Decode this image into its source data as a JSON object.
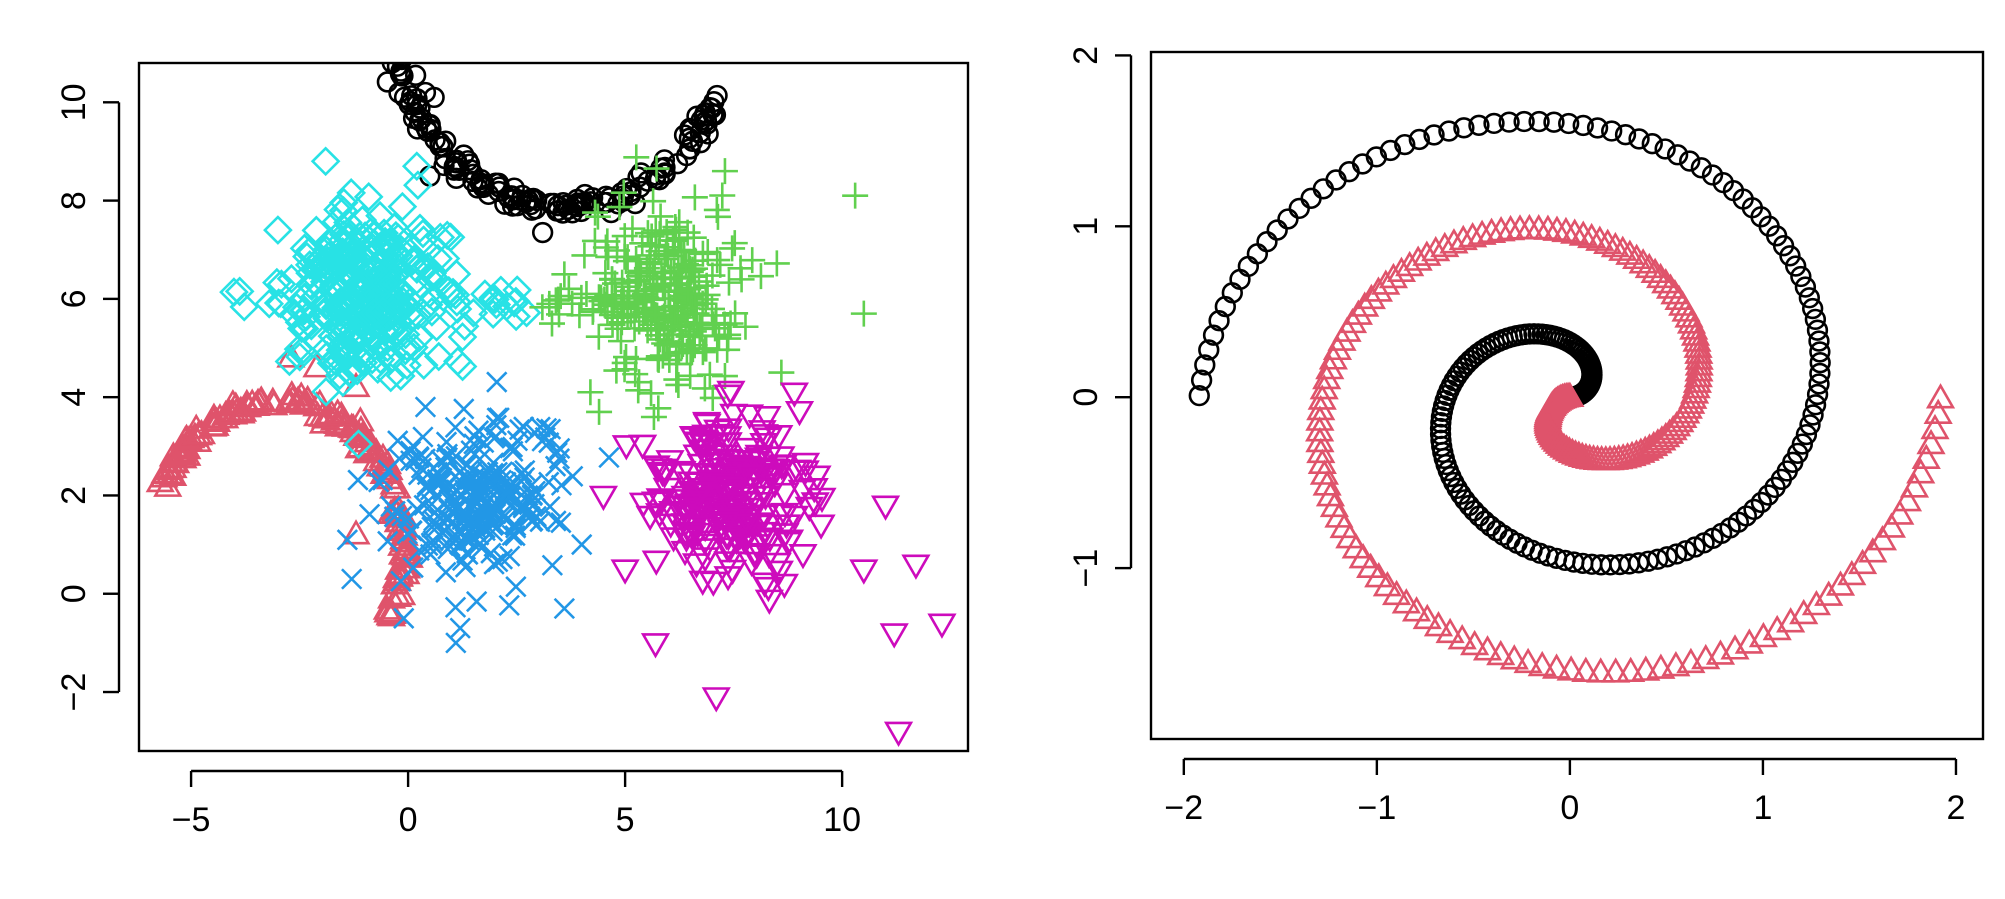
{
  "chart_data": [
    {
      "type": "scatter",
      "title": "",
      "xlabel": "",
      "ylabel": "",
      "xlim": [
        -6.2,
        12.9
      ],
      "ylim": [
        -3.2,
        10.8
      ],
      "xticks": [
        -5,
        0,
        5,
        10
      ],
      "yticks": [
        -2,
        0,
        2,
        4,
        6,
        8,
        10
      ],
      "xtick_labels": [
        "−5",
        "0",
        "5",
        "10"
      ],
      "ytick_labels": [
        "−2",
        "0",
        "2",
        "4",
        "6",
        "8",
        "10"
      ],
      "grid": false,
      "legend": "none",
      "series": [
        {
          "color": "#000000",
          "marker": "circle",
          "shape": "arc",
          "center": [
            3.6,
            11.9
          ],
          "radius": 4.0,
          "angle_range": [
            195,
            335
          ],
          "points": 150,
          "noise": 0.12,
          "extra_points": [
            [
              0.4,
              10.2
            ],
            [
              0.6,
              10.1
            ],
            [
              0.5,
              8.5
            ],
            [
              3.1,
              7.35
            ]
          ]
        },
        {
          "color": "#DF536B",
          "marker": "triangle",
          "shape": "arc",
          "center": [
            -3.0,
            1.0
          ],
          "radius": 2.9,
          "angle_range": [
            -30,
            158
          ],
          "points": 160,
          "noise": 0.08,
          "extra_points": [
            [
              -2.7,
              4.8
            ],
            [
              -2.1,
              4.6
            ],
            [
              -1.2,
              4.2
            ],
            [
              -1.1,
              3.5
            ],
            [
              -1.2,
              1.2
            ]
          ]
        },
        {
          "color": "#28E2E5",
          "marker": "diamond",
          "shape": "blob",
          "center": [
            -1.0,
            6.0
          ],
          "spread": [
            0.9,
            0.85
          ],
          "points": 300,
          "tail": {
            "from": [
              0.5,
              5.9
            ],
            "to": [
              2.7,
              5.9
            ],
            "points": 20
          },
          "extra_points": [
            [
              -3.2,
              5.9
            ],
            [
              -3.0,
              7.4
            ],
            [
              -1.9,
              8.8
            ],
            [
              0.2,
              8.7
            ],
            [
              -0.4,
              4.4
            ],
            [
              -1.5,
              4.3
            ]
          ]
        },
        {
          "color": "#61D04F",
          "marker": "plus",
          "shape": "blob",
          "center": [
            6.0,
            6.0
          ],
          "spread": [
            0.85,
            0.9
          ],
          "points": 250,
          "tail": {
            "from": [
              3.0,
              5.9
            ],
            "to": [
              5.0,
              5.9
            ],
            "points": 20
          },
          "extra_points": [
            [
              10.3,
              8.1
            ],
            [
              10.5,
              5.7
            ],
            [
              7.3,
              8.6
            ],
            [
              8.6,
              4.5
            ],
            [
              4.2,
              4.1
            ],
            [
              4.4,
              3.7
            ],
            [
              3.6,
              6.5
            ]
          ]
        },
        {
          "color": "#2297E6",
          "marker": "cross",
          "shape": "blob",
          "center": [
            1.5,
            2.0
          ],
          "spread": [
            1.0,
            0.8
          ],
          "points": 250,
          "extra_points": [
            [
              -1.3,
              0.3
            ],
            [
              -0.1,
              -0.5
            ],
            [
              1.1,
              -1.0
            ],
            [
              1.2,
              -0.7
            ],
            [
              3.6,
              -0.3
            ],
            [
              4.0,
              1.0
            ],
            [
              0.4,
              3.8
            ]
          ]
        },
        {
          "color": "#CD0BBC",
          "marker": "triangle-down",
          "shape": "blob",
          "center": [
            7.5,
            2.0
          ],
          "spread": [
            0.85,
            0.8
          ],
          "points": 250,
          "extra_points": [
            [
              10.5,
              0.5
            ],
            [
              11.2,
              -0.8
            ],
            [
              11.7,
              0.6
            ],
            [
              12.3,
              -0.6
            ],
            [
              11.3,
              -2.8
            ],
            [
              7.1,
              -2.1
            ],
            [
              5.0,
              0.5
            ],
            [
              4.5,
              2.0
            ],
            [
              5.7,
              -1.0
            ],
            [
              11.0,
              1.8
            ],
            [
              8.9,
              4.1
            ]
          ]
        }
      ]
    },
    {
      "type": "scatter",
      "title": "",
      "xlabel": "",
      "ylabel": "",
      "xlim": [
        -2.17,
        2.14
      ],
      "ylim": [
        -2.0,
        2.02
      ],
      "xticks": [
        -2,
        -1,
        0,
        1,
        2
      ],
      "yticks": [
        -1,
        0,
        1,
        2
      ],
      "xtick_labels": [
        "−2",
        "−1",
        "0",
        "1",
        "2"
      ],
      "ytick_labels": [
        "−1",
        "0",
        "1",
        "2"
      ],
      "grid": false,
      "legend": "none",
      "series": [
        {
          "color": "#000000",
          "marker": "circle",
          "shape": "spiral",
          "rotation": 0,
          "turns_rad": 9.42,
          "r_start": 0.0,
          "r_end": 1.92,
          "points": 200
        },
        {
          "color": "#DF536B",
          "marker": "triangle",
          "shape": "spiral",
          "rotation": 3.1416,
          "turns_rad": 9.42,
          "r_start": 0.0,
          "r_end": 1.92,
          "points": 200
        }
      ]
    }
  ]
}
